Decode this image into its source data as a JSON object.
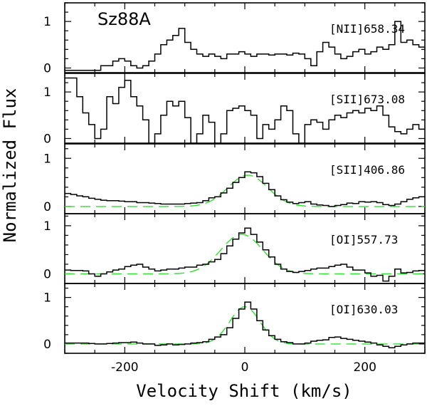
{
  "chart_data": {
    "type": "line",
    "title": "Sz88A",
    "xlabel": "Velocity Shift (km/s)",
    "ylabel": "Normalized Flux",
    "xlim": [
      -300,
      300
    ],
    "x_ticks": [
      -200,
      0,
      200
    ],
    "panels": [
      {
        "label": "[NII]658.34",
        "ylim": [
          -0.1,
          1.4
        ],
        "y_ticks": [
          0,
          1
        ],
        "fit": null,
        "series": [
          {
            "name": "observed",
            "style": "steps",
            "x": [
              -300,
              -270,
              -240,
              -220,
              -210,
              -200,
              -190,
              -180,
              -170,
              -160,
              -150,
              -140,
              -130,
              -120,
              -110,
              -100,
              -90,
              -80,
              -70,
              -60,
              -50,
              -40,
              -30,
              -20,
              -10,
              0,
              10,
              20,
              30,
              40,
              50,
              60,
              70,
              80,
              90,
              100,
              110,
              120,
              130,
              140,
              150,
              160,
              170,
              180,
              190,
              200,
              210,
              220,
              230,
              240,
              250,
              260,
              270,
              280,
              290,
              300
            ],
            "y": [
              -0.05,
              -0.05,
              0.05,
              0.15,
              0.2,
              0.15,
              0.05,
              0.0,
              0.05,
              0.15,
              0.3,
              0.5,
              0.6,
              0.7,
              0.85,
              0.55,
              0.4,
              0.3,
              0.25,
              0.3,
              0.25,
              0.2,
              0.3,
              0.3,
              0.35,
              0.3,
              0.25,
              0.3,
              0.3,
              0.28,
              0.3,
              0.3,
              0.28,
              0.32,
              0.3,
              0.2,
              0.05,
              0.35,
              0.55,
              0.45,
              0.3,
              0.2,
              0.25,
              0.35,
              0.4,
              0.3,
              0.35,
              0.45,
              0.4,
              0.5,
              1.0,
              0.55,
              0.6,
              0.5,
              0.45,
              0.3
            ]
          }
        ]
      },
      {
        "label": "[SII]673.08",
        "ylim": [
          -0.1,
          1.4
        ],
        "y_ticks": [
          0,
          1
        ],
        "fit": null,
        "series": [
          {
            "name": "observed",
            "style": "steps",
            "x": [
              -300,
              -290,
              -280,
              -270,
              -260,
              -250,
              -240,
              -230,
              -220,
              -210,
              -200,
              -190,
              -180,
              -170,
              -160,
              -150,
              -140,
              -130,
              -120,
              -110,
              -100,
              -90,
              -80,
              -70,
              -60,
              -50,
              -40,
              -30,
              -20,
              -10,
              0,
              10,
              20,
              30,
              40,
              50,
              60,
              70,
              80,
              90,
              100,
              110,
              120,
              130,
              140,
              150,
              160,
              170,
              180,
              190,
              200,
              210,
              220,
              230,
              240,
              250,
              260,
              270,
              280,
              290,
              300
            ],
            "y": [
              1.3,
              1.3,
              0.9,
              0.55,
              0.3,
              0.0,
              0.2,
              0.9,
              0.75,
              1.1,
              1.25,
              0.9,
              0.7,
              0.4,
              -0.1,
              0.1,
              0.5,
              0.8,
              0.7,
              0.8,
              0.45,
              -0.1,
              0.1,
              0.5,
              0.35,
              -0.1,
              0.1,
              0.6,
              0.65,
              0.7,
              0.6,
              0.5,
              0.0,
              0.3,
              0.2,
              0.4,
              0.7,
              0.6,
              0.1,
              -0.1,
              0.3,
              0.4,
              0.35,
              0.2,
              0.4,
              0.5,
              0.45,
              0.55,
              0.6,
              0.55,
              0.65,
              0.6,
              0.7,
              0.5,
              0.25,
              0.15,
              0.1,
              0.2,
              0.3,
              0.2,
              0.2
            ]
          }
        ]
      },
      {
        "label": "[SII]406.86",
        "ylim": [
          -0.15,
          1.3
        ],
        "y_ticks": [
          0,
          1
        ],
        "fit": {
          "type": "gaussian",
          "amplitude": 0.65,
          "center": 5,
          "sigma": 33
        },
        "series": [
          {
            "name": "observed",
            "style": "steps",
            "x": [
              -300,
              -290,
              -280,
              -270,
              -260,
              -250,
              -240,
              -230,
              -220,
              -210,
              -200,
              -190,
              -180,
              -170,
              -160,
              -150,
              -140,
              -130,
              -120,
              -110,
              -100,
              -90,
              -80,
              -70,
              -60,
              -50,
              -40,
              -30,
              -20,
              -10,
              0,
              10,
              20,
              30,
              40,
              50,
              60,
              70,
              80,
              90,
              100,
              110,
              120,
              130,
              140,
              150,
              160,
              170,
              180,
              190,
              200,
              210,
              220,
              230,
              240,
              250,
              260,
              270,
              280,
              290,
              300
            ],
            "y": [
              0.27,
              0.25,
              0.22,
              0.2,
              0.17,
              0.15,
              0.13,
              0.12,
              0.12,
              0.11,
              0.1,
              0.1,
              0.08,
              0.08,
              0.07,
              0.06,
              0.05,
              0.05,
              0.05,
              0.05,
              0.06,
              0.07,
              0.08,
              0.12,
              0.18,
              0.2,
              0.28,
              0.38,
              0.5,
              0.6,
              0.72,
              0.7,
              0.62,
              0.48,
              0.35,
              0.22,
              0.14,
              0.09,
              0.06,
              0.08,
              0.1,
              0.05,
              0.03,
              0.02,
              0.0,
              0.02,
              0.04,
              0.07,
              0.06,
              0.1,
              0.09,
              0.1,
              0.08,
              0.04,
              0.02,
              0.05,
              0.1,
              0.15,
              0.18,
              0.2,
              0.2
            ]
          },
          {
            "name": "gaussian fit",
            "style": "dashed-green"
          }
        ]
      },
      {
        "label": "[OI]557.73",
        "ylim": [
          -0.2,
          1.25
        ],
        "y_ticks": [
          0,
          1
        ],
        "fit": {
          "type": "gaussian",
          "amplitude": 0.82,
          "center": -5,
          "sigma": 35
        },
        "series": [
          {
            "name": "observed",
            "style": "steps",
            "x": [
              -300,
              -290,
              -280,
              -270,
              -260,
              -250,
              -240,
              -230,
              -220,
              -210,
              -200,
              -190,
              -180,
              -170,
              -160,
              -150,
              -140,
              -130,
              -120,
              -110,
              -100,
              -90,
              -80,
              -70,
              -60,
              -50,
              -40,
              -30,
              -20,
              -10,
              0,
              10,
              20,
              30,
              40,
              50,
              60,
              70,
              80,
              90,
              100,
              110,
              120,
              130,
              140,
              150,
              160,
              170,
              180,
              190,
              200,
              210,
              220,
              230,
              240,
              250,
              260,
              270,
              280,
              290,
              300
            ],
            "y": [
              0.08,
              0.07,
              0.07,
              0.06,
              0.0,
              -0.05,
              0.0,
              0.04,
              0.08,
              0.1,
              0.15,
              0.18,
              0.2,
              0.14,
              0.1,
              0.06,
              0.08,
              0.1,
              0.1,
              0.12,
              0.14,
              0.14,
              0.18,
              0.2,
              0.25,
              0.3,
              0.42,
              0.58,
              0.72,
              0.85,
              0.95,
              0.82,
              0.66,
              0.5,
              0.35,
              0.2,
              0.1,
              0.05,
              0.03,
              0.05,
              0.07,
              0.1,
              0.12,
              0.12,
              0.15,
              0.18,
              0.2,
              0.14,
              0.08,
              0.08,
              0.02,
              -0.05,
              -0.03,
              -0.15,
              -0.05,
              0.1,
              0.02,
              0.03,
              0.06,
              0.07,
              0.06
            ]
          },
          {
            "name": "gaussian fit",
            "style": "dashed-green"
          }
        ]
      },
      {
        "label": "[OI]630.03",
        "ylim": [
          -0.2,
          1.3
        ],
        "y_ticks": [
          0,
          1
        ],
        "fit": {
          "type": "gaussian",
          "amplitude": 0.8,
          "center": 0,
          "sigma": 25
        },
        "series": [
          {
            "name": "observed",
            "style": "steps",
            "x": [
              -300,
              -290,
              -280,
              -270,
              -260,
              -250,
              -240,
              -230,
              -220,
              -210,
              -200,
              -190,
              -180,
              -170,
              -160,
              -150,
              -140,
              -130,
              -120,
              -110,
              -100,
              -90,
              -80,
              -70,
              -60,
              -50,
              -40,
              -30,
              -20,
              -10,
              0,
              10,
              20,
              30,
              40,
              50,
              60,
              70,
              80,
              90,
              100,
              110,
              120,
              130,
              140,
              150,
              160,
              170,
              180,
              190,
              200,
              210,
              220,
              230,
              240,
              250,
              260,
              270,
              280,
              290,
              300
            ],
            "y": [
              0.02,
              0.02,
              0.02,
              0.02,
              0.01,
              0.0,
              0.0,
              0.01,
              0.02,
              0.03,
              0.03,
              0.04,
              0.02,
              0.0,
              0.0,
              -0.03,
              -0.02,
              0.0,
              -0.02,
              -0.01,
              0.0,
              0.02,
              0.03,
              0.05,
              0.1,
              0.15,
              0.2,
              0.35,
              0.55,
              0.75,
              0.9,
              0.75,
              0.5,
              0.3,
              0.18,
              0.1,
              0.05,
              0.03,
              0.0,
              0.0,
              0.02,
              0.06,
              0.08,
              0.09,
              0.14,
              0.15,
              0.12,
              0.1,
              0.08,
              0.06,
              0.04,
              0.02,
              -0.02,
              -0.05,
              -0.08,
              -0.05,
              -0.02,
              0.0,
              0.02,
              0.02,
              0.0
            ]
          },
          {
            "name": "gaussian fit",
            "style": "dashed-green"
          }
        ]
      }
    ]
  },
  "colors": {
    "data_line": "#000000",
    "fit_line": "#33dd33",
    "axes": "#000000",
    "background": "#ffffff"
  }
}
